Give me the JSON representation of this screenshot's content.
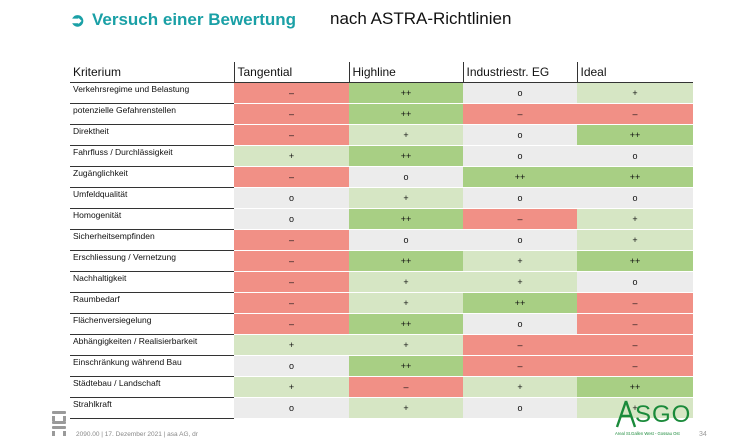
{
  "title": {
    "arrow": "➲",
    "main": "Versuch einer Bewertung",
    "sub": "nach ASTRA-Richtlinien"
  },
  "table": {
    "columns": [
      "Kriterium",
      "Tangential",
      "Highline",
      "Industriestr. EG",
      "Ideal"
    ],
    "rows": [
      {
        "label": "Verkehrsregime und Belastung",
        "values": [
          "–",
          "++",
          "o",
          "+"
        ]
      },
      {
        "label": "potenzielle Gefahrenstellen",
        "values": [
          "–",
          "++",
          "–",
          "–"
        ]
      },
      {
        "label": "Direktheit",
        "values": [
          "–",
          "+",
          "o",
          "++"
        ]
      },
      {
        "label": "Fahrfluss / Durchlässigkeit",
        "values": [
          "+",
          "++",
          "o",
          "o"
        ]
      },
      {
        "label": "Zugänglichkeit",
        "values": [
          "–",
          "o",
          "++",
          "++"
        ]
      },
      {
        "label": "Umfeldqualität",
        "values": [
          "o",
          "+",
          "o",
          "o"
        ]
      },
      {
        "label": "Homogenität",
        "values": [
          "o",
          "++",
          "–",
          "+"
        ]
      },
      {
        "label": "Sicherheitsempfinden",
        "values": [
          "–",
          "o",
          "o",
          "+"
        ]
      },
      {
        "label": "Erschliessung / Vernetzung",
        "values": [
          "–",
          "++",
          "+",
          "++"
        ]
      },
      {
        "label": "Nachhaltigkeit",
        "values": [
          "–",
          "+",
          "+",
          "o"
        ]
      },
      {
        "label": "Raumbedarf",
        "values": [
          "–",
          "+",
          "++",
          "–"
        ]
      },
      {
        "label": "Flächenversiegelung",
        "values": [
          "–",
          "++",
          "o",
          "–"
        ]
      },
      {
        "label": "Abhängigkeiten / Realisierbarkeit",
        "values": [
          "+",
          "+",
          "–",
          "–"
        ]
      },
      {
        "label": "Einschränkung während Bau",
        "values": [
          "o",
          "++",
          "–",
          "–"
        ]
      },
      {
        "label": "Städtebau / Landschaft",
        "values": [
          "+",
          "–",
          "+",
          "++"
        ]
      },
      {
        "label": "Strahlkraft",
        "values": [
          "o",
          "+",
          "o",
          "+"
        ]
      }
    ]
  },
  "colors": {
    "bad": "#f19086",
    "neutral": "#ececec",
    "good": "#d6e6c4",
    "very_good": "#a8cf84",
    "accent": "#1aa0a6",
    "logo_green": "#1a8a3a"
  },
  "footer": {
    "left_logo": "asa",
    "text": "2090.00 | 17. Dezember 2021 | asa AG, dr",
    "brand": {
      "letters": "SGO",
      "tagline": "Areal St.Gallen West - Gossau Ost"
    },
    "page_number": "34"
  }
}
